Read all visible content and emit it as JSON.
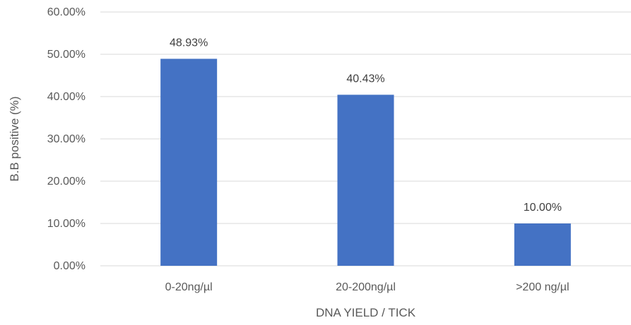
{
  "chart_data": {
    "type": "bar",
    "categories": [
      "0-20ng/µl",
      "20-200ng/µl",
      ">200 ng/µl"
    ],
    "values": [
      48.93,
      40.43,
      10.0
    ],
    "data_labels": [
      "48.93%",
      "40.43%",
      "10.00%"
    ],
    "title": "",
    "xlabel": "DNA YIELD / TICK",
    "ylabel": "B.B positive (%)",
    "ylim": [
      0,
      60
    ],
    "yticks": [
      0,
      10,
      20,
      30,
      40,
      50,
      60
    ],
    "ytick_labels": [
      "0.00%",
      "10.00%",
      "20.00%",
      "30.00%",
      "40.00%",
      "50.00%",
      "60.00%"
    ],
    "grid": true,
    "legend": "none",
    "bar_color": "#4472c4"
  }
}
